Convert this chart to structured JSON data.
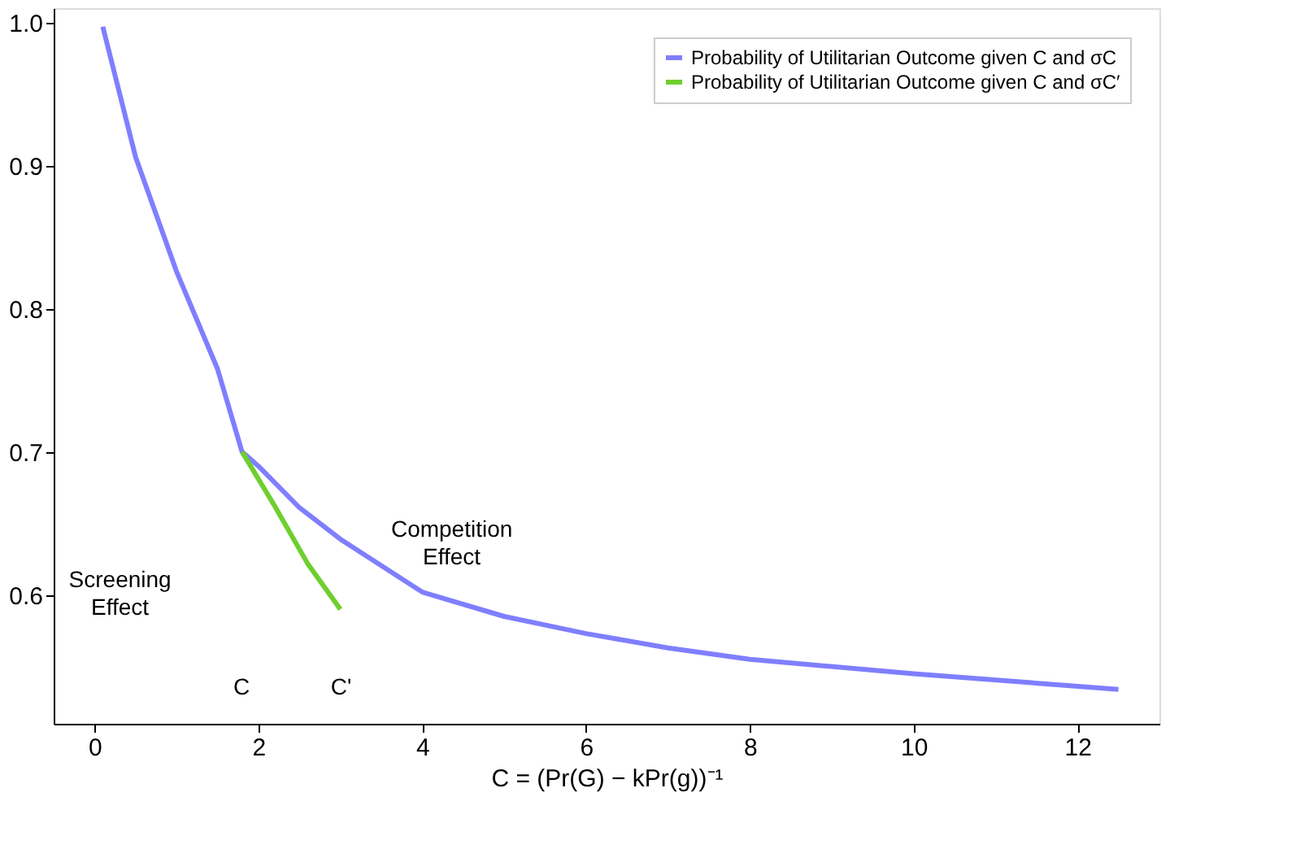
{
  "chart_data": {
    "type": "line",
    "xlabel": "C = (Pr(G) − kPr(g))⁻¹",
    "series": [
      {
        "name": "Probability of Utilitarian Outcome given C and σC",
        "color": "#7f7fff",
        "x": [
          0.1,
          0.5,
          1,
          1.5,
          1.8,
          2,
          2.5,
          3,
          4,
          5,
          6,
          7,
          8,
          10,
          12.5
        ],
        "values": [
          0.997,
          0.906,
          0.826,
          0.758,
          0.7,
          0.69,
          0.661,
          0.639,
          0.602,
          0.585,
          0.573,
          0.563,
          0.555,
          0.545,
          0.534
        ]
      },
      {
        "name": "Probability of Utilitarian Outcome given C and σC′",
        "color": "#6fcf2f",
        "x": [
          1.8,
          2.2,
          2.6,
          3.0
        ],
        "values": [
          0.7,
          0.662,
          0.622,
          0.59
        ]
      }
    ],
    "xlim": [
      -0.5,
      13
    ],
    "xticks": [
      0,
      2,
      4,
      6,
      8,
      10,
      12
    ],
    "ylim": [
      0.51,
      1.01
    ],
    "yticks": [
      0.6,
      0.7,
      0.8,
      0.9,
      {
        "value": 1.0,
        "label": "1.0"
      }
    ],
    "annotations": [
      "Screening\nEffect",
      "Competition\nEffect",
      "C",
      "C'"
    ],
    "legend": "top right",
    "grid": false
  }
}
